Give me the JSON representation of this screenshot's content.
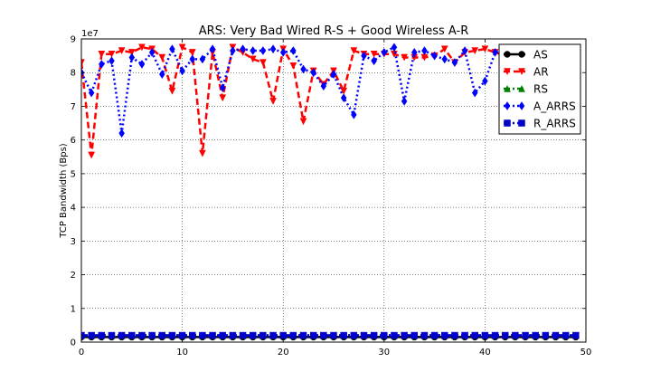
{
  "chart_data": {
    "type": "line",
    "title": "ARS: Very Bad Wired R-S + Good Wireless A-R",
    "xlabel": "",
    "ylabel": "TCP Bandwidth (Bps)",
    "offset_text": "1e7",
    "xlim": [
      0,
      50
    ],
    "ylim": [
      0,
      9
    ],
    "xticks": [
      0,
      10,
      20,
      30,
      40,
      50
    ],
    "yticks": [
      0,
      1,
      2,
      3,
      4,
      5,
      6,
      7,
      8,
      9
    ],
    "grid": true,
    "legend_position": "top-right",
    "x": [
      0,
      1,
      2,
      3,
      4,
      5,
      6,
      7,
      8,
      9,
      10,
      11,
      12,
      13,
      14,
      15,
      16,
      17,
      18,
      19,
      20,
      21,
      22,
      23,
      24,
      25,
      26,
      27,
      28,
      29,
      30,
      31,
      32,
      33,
      34,
      35,
      36,
      37,
      38,
      39,
      40,
      41,
      42,
      43,
      44,
      45,
      46,
      47,
      48,
      49
    ],
    "series": [
      {
        "name": "AS",
        "color": "#000000",
        "style": "solid",
        "marker": "circle",
        "values": [
          0.15,
          0.15,
          0.15,
          0.15,
          0.15,
          0.15,
          0.15,
          0.15,
          0.15,
          0.15,
          0.15,
          0.15,
          0.15,
          0.15,
          0.15,
          0.15,
          0.15,
          0.15,
          0.15,
          0.15,
          0.15,
          0.15,
          0.15,
          0.15,
          0.15,
          0.15,
          0.15,
          0.15,
          0.15,
          0.15,
          0.15,
          0.15,
          0.15,
          0.15,
          0.15,
          0.15,
          0.15,
          0.15,
          0.15,
          0.15,
          0.15,
          0.15,
          0.15,
          0.15,
          0.15,
          0.15,
          0.15,
          0.15,
          0.15,
          0.15
        ]
      },
      {
        "name": "AR",
        "color": "#ff0000",
        "style": "dashed",
        "marker": "triangle-down",
        "values": [
          8.3,
          5.55,
          8.55,
          8.55,
          8.65,
          8.6,
          8.75,
          8.7,
          8.45,
          7.45,
          8.75,
          8.6,
          5.6,
          8.6,
          7.25,
          8.75,
          8.6,
          8.4,
          8.3,
          7.15,
          8.7,
          8.2,
          6.55,
          8.05,
          7.65,
          8.05,
          7.45,
          8.65,
          8.55,
          8.55,
          8.55,
          8.55,
          8.45,
          8.45,
          8.45,
          8.5,
          8.7,
          8.3,
          8.6,
          8.65,
          8.7,
          8.6,
          8.5,
          8.5,
          8.6,
          8.6,
          8.6,
          8.6,
          8.6,
          8.6
        ]
      },
      {
        "name": "RS",
        "color": "#008000",
        "style": "dashdot",
        "marker": "triangle-up",
        "values": [
          0.2,
          0.2,
          0.2,
          0.2,
          0.2,
          0.2,
          0.2,
          0.2,
          0.2,
          0.2,
          0.2,
          0.2,
          0.2,
          0.2,
          0.2,
          0.2,
          0.2,
          0.2,
          0.2,
          0.2,
          0.2,
          0.2,
          0.2,
          0.2,
          0.2,
          0.2,
          0.2,
          0.2,
          0.2,
          0.2,
          0.2,
          0.2,
          0.2,
          0.2,
          0.2,
          0.2,
          0.2,
          0.2,
          0.2,
          0.2,
          0.2,
          0.2,
          0.2,
          0.2,
          0.2,
          0.2,
          0.2,
          0.2,
          0.2,
          0.2
        ]
      },
      {
        "name": "A_ARRS",
        "color": "#0000ff",
        "style": "dotted",
        "marker": "diamond",
        "values": [
          8.0,
          7.4,
          8.25,
          8.35,
          6.2,
          8.45,
          8.25,
          8.6,
          7.95,
          8.7,
          8.05,
          8.4,
          8.4,
          8.7,
          7.55,
          8.65,
          8.7,
          8.65,
          8.65,
          8.7,
          8.6,
          8.65,
          8.1,
          8.0,
          7.6,
          7.95,
          7.25,
          6.75,
          8.5,
          8.35,
          8.6,
          8.75,
          7.15,
          8.6,
          8.65,
          8.5,
          8.4,
          8.3,
          8.65,
          7.4,
          7.75,
          8.6,
          8.7,
          8.6,
          8.6,
          8.6,
          8.6,
          8.6,
          8.6,
          8.6
        ]
      },
      {
        "name": "R_ARRS",
        "color": "#0000cc",
        "style": "dashdot",
        "marker": "square",
        "values": [
          0.2,
          0.2,
          0.2,
          0.2,
          0.2,
          0.2,
          0.2,
          0.2,
          0.2,
          0.2,
          0.2,
          0.2,
          0.2,
          0.2,
          0.2,
          0.2,
          0.2,
          0.2,
          0.2,
          0.2,
          0.2,
          0.2,
          0.2,
          0.2,
          0.2,
          0.2,
          0.2,
          0.2,
          0.2,
          0.2,
          0.2,
          0.2,
          0.2,
          0.2,
          0.2,
          0.2,
          0.2,
          0.2,
          0.2,
          0.2,
          0.2,
          0.2,
          0.2,
          0.2,
          0.2,
          0.2,
          0.2,
          0.2,
          0.2,
          0.2
        ]
      }
    ]
  }
}
